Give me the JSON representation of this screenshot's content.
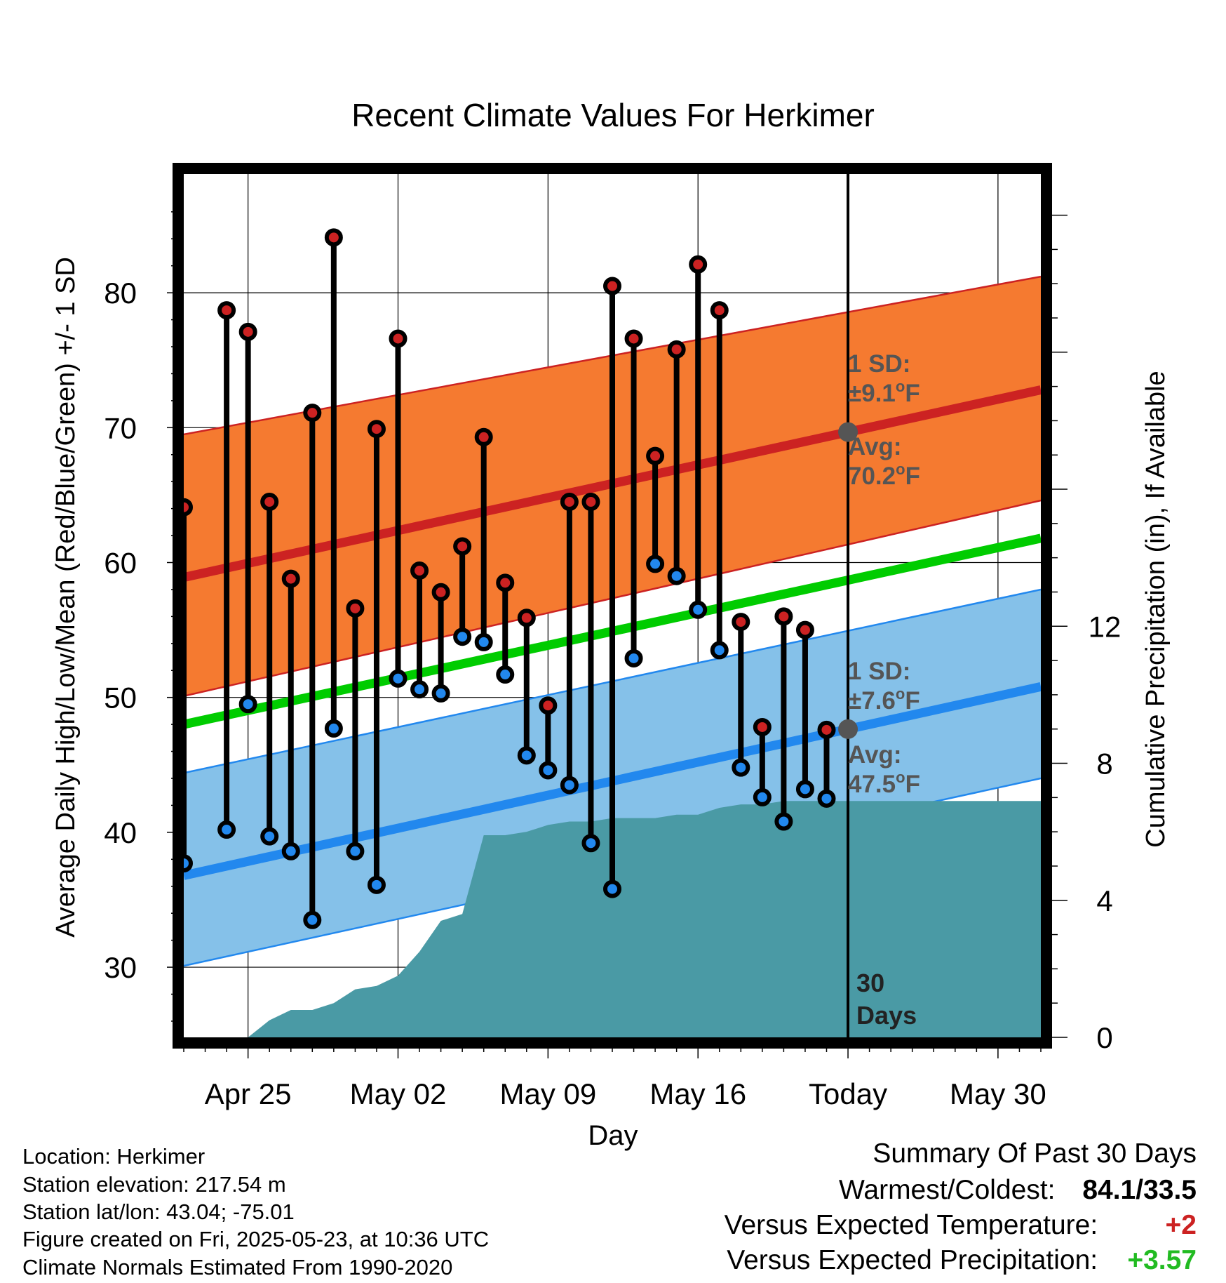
{
  "chart_data": {
    "type": "line",
    "title": "Recent Climate Values For Herkimer",
    "xlabel": "Day",
    "ylabel_left": "Average Daily High/Low/Mean (Red/Blue/Green) +/- 1 SD",
    "ylabel_right": "Cumulative Precipitation (in), If Available",
    "x_tick_labels": [
      "Apr 25",
      "May 02",
      "May 09",
      "May 16",
      "Today",
      "May 30"
    ],
    "x_tick_dates": [
      "2025-04-25",
      "2025-05-02",
      "2025-05-09",
      "2025-05-16",
      "2025-05-23",
      "2025-05-30"
    ],
    "xlim": [
      "2025-04-22",
      "2025-06-01"
    ],
    "y_left_ticks": [
      30,
      40,
      50,
      60,
      70,
      80
    ],
    "ylim_left": [
      24.8,
      88.8
    ],
    "y_right_ticks": [
      0,
      4,
      8,
      12
    ],
    "ylim_right": [
      0,
      25.2
    ],
    "grid": true,
    "today_marker": "2025-05-23",
    "today_label": "30 Days",
    "colors": {
      "high": "#cc2222",
      "low": "#2288ee",
      "mean": "#00cc00",
      "high_band": "#f57a30",
      "low_band": "#85c1e9",
      "precip": "#4a9aa5",
      "annotation": "#555555"
    },
    "normals": {
      "dates": [
        "2025-04-22",
        "2025-06-01"
      ],
      "high_avg": [
        58.9,
        72.8
      ],
      "high_sd_upper": [
        69.5,
        81.2
      ],
      "high_sd_lower": [
        50.1,
        64.6
      ],
      "low_avg": [
        36.8,
        50.8
      ],
      "low_sd_upper": [
        44.4,
        58.0
      ],
      "low_sd_lower": [
        30.1,
        44.0
      ],
      "mean_avg": [
        48.0,
        61.8
      ]
    },
    "annotations": {
      "high_sd": "1 SD:",
      "high_sd_value": "±9.1",
      "high_avg": "Avg:",
      "high_avg_value": "70.2",
      "low_sd": "1 SD:",
      "low_sd_value": "±7.6",
      "low_avg": "Avg:",
      "low_avg_value": "47.5",
      "unit_sup": "o",
      "unit": "F"
    },
    "series": [
      {
        "name": "High",
        "dates": [
          "2025-04-22",
          "2025-04-24",
          "2025-04-25",
          "2025-04-26",
          "2025-04-27",
          "2025-04-28",
          "2025-04-29",
          "2025-04-30",
          "2025-05-01",
          "2025-05-02",
          "2025-05-03",
          "2025-05-04",
          "2025-05-05",
          "2025-05-06",
          "2025-05-07",
          "2025-05-08",
          "2025-05-09",
          "2025-05-10",
          "2025-05-11",
          "2025-05-12",
          "2025-05-13",
          "2025-05-14",
          "2025-05-15",
          "2025-05-16",
          "2025-05-17",
          "2025-05-18",
          "2025-05-19",
          "2025-05-20",
          "2025-05-21",
          "2025-05-22"
        ],
        "values": [
          64.1,
          78.7,
          77.1,
          64.5,
          58.8,
          71.1,
          84.1,
          56.6,
          69.9,
          76.6,
          59.4,
          57.8,
          61.2,
          69.3,
          58.5,
          55.9,
          49.4,
          64.5,
          64.5,
          80.5,
          76.6,
          67.9,
          75.8,
          82.1,
          78.7,
          55.6,
          47.8,
          56.0,
          55.0,
          47.6
        ]
      },
      {
        "name": "Low",
        "dates": [
          "2025-04-22",
          "2025-04-24",
          "2025-04-25",
          "2025-04-26",
          "2025-04-27",
          "2025-04-28",
          "2025-04-29",
          "2025-04-30",
          "2025-05-01",
          "2025-05-02",
          "2025-05-03",
          "2025-05-04",
          "2025-05-05",
          "2025-05-06",
          "2025-05-07",
          "2025-05-08",
          "2025-05-09",
          "2025-05-10",
          "2025-05-11",
          "2025-05-12",
          "2025-05-13",
          "2025-05-14",
          "2025-05-15",
          "2025-05-16",
          "2025-05-17",
          "2025-05-18",
          "2025-05-19",
          "2025-05-20",
          "2025-05-21",
          "2025-05-22"
        ],
        "values": [
          37.7,
          40.2,
          49.5,
          39.7,
          38.6,
          33.5,
          47.7,
          38.6,
          36.1,
          51.4,
          50.6,
          50.3,
          54.5,
          54.1,
          51.7,
          45.7,
          44.6,
          43.5,
          39.2,
          35.8,
          52.9,
          59.9,
          59.0,
          56.5,
          53.5,
          44.8,
          42.6,
          40.8,
          43.2,
          42.5
        ]
      },
      {
        "name": "Cumulative Precipitation",
        "dates": [
          "2025-04-25",
          "2025-04-26",
          "2025-04-27",
          "2025-04-28",
          "2025-04-29",
          "2025-04-30",
          "2025-05-01",
          "2025-05-02",
          "2025-05-03",
          "2025-05-04",
          "2025-05-05",
          "2025-05-06",
          "2025-05-07",
          "2025-05-08",
          "2025-05-09",
          "2025-05-10",
          "2025-05-11",
          "2025-05-12",
          "2025-05-13",
          "2025-05-14",
          "2025-05-15",
          "2025-05-16",
          "2025-05-17",
          "2025-05-18",
          "2025-05-19",
          "2025-05-20",
          "2025-05-21",
          "2025-05-22",
          "2025-05-23",
          "2025-06-01"
        ],
        "values": [
          0.0,
          0.5,
          0.8,
          0.8,
          1.0,
          1.4,
          1.5,
          1.8,
          2.5,
          3.4,
          3.6,
          5.9,
          5.9,
          6.0,
          6.2,
          6.3,
          6.3,
          6.4,
          6.4,
          6.4,
          6.5,
          6.5,
          6.7,
          6.8,
          6.8,
          6.9,
          6.9,
          6.9,
          6.9,
          6.9
        ]
      }
    ]
  },
  "footer": {
    "location": "Location: Herkimer",
    "elevation": "Station elevation: 217.54 m",
    "latlon": "Station lat/lon: 43.04; -75.01",
    "created": "Figure created on Fri, 2025-05-23, at 10:36 UTC",
    "normals_period": "Climate Normals Estimated From 1990-2020"
  },
  "summary": {
    "title": "Summary Of Past 30 Days",
    "warm_cold_label": "Warmest/Coldest:",
    "warm_cold_value": "84.1/33.5",
    "temp_label": "Versus Expected Temperature:",
    "temp_value": "+2",
    "temp_color": "#cc2222",
    "precip_label": "Versus Expected Precipitation:",
    "precip_value": "+3.57",
    "precip_color": "#22bb22"
  }
}
